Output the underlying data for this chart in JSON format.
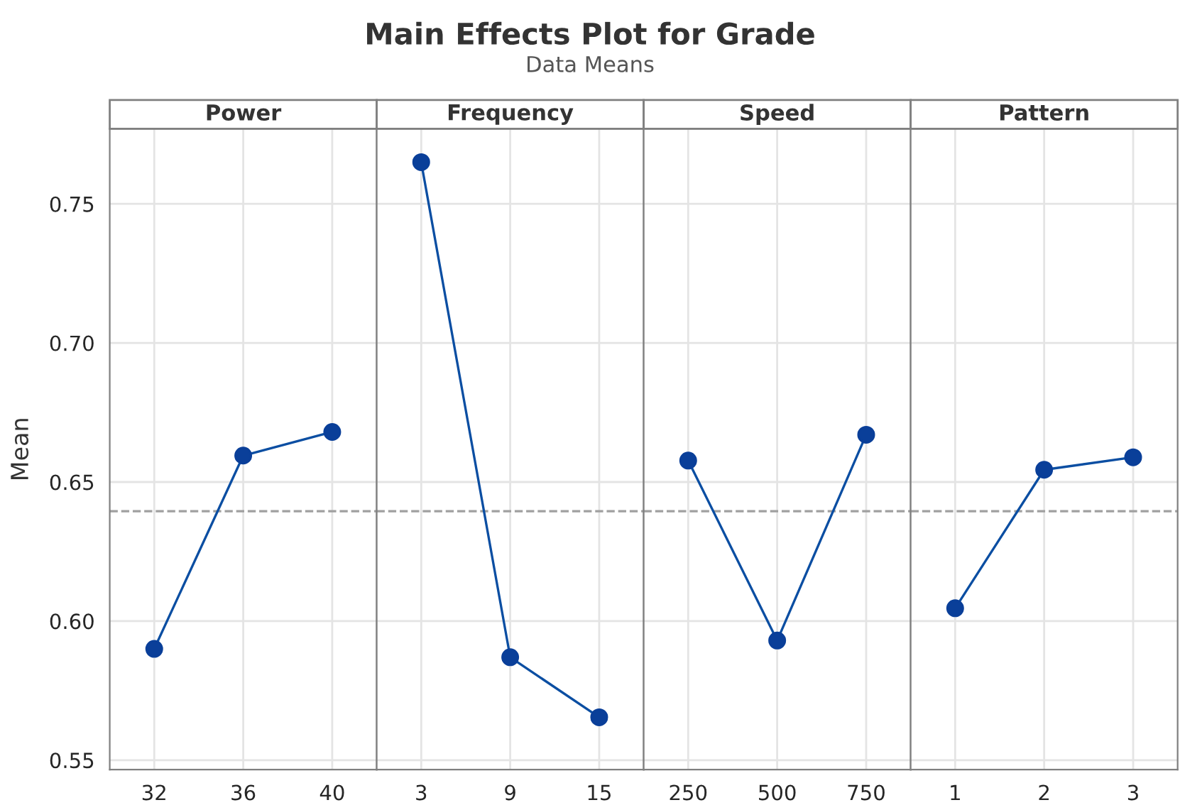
{
  "chart_data": [
    {
      "type": "other",
      "title": "Main Effects Plot for Grade",
      "subtitle": "Data Means"
    },
    {
      "type": "line",
      "title": "Power",
      "ylabel": "Mean",
      "categories": [
        "32",
        "36",
        "40"
      ],
      "series": [
        {
          "color": "#0b4ea2",
          "values": [
            0.59,
            0.6595,
            0.668
          ]
        }
      ],
      "ylim": [
        0.5466,
        0.777
      ],
      "yticks": [
        {
          "value": 0.55,
          "label": "0.55"
        },
        {
          "value": 0.6,
          "label": "0.60"
        },
        {
          "value": 0.65,
          "label": "0.65"
        },
        {
          "value": 0.7,
          "label": "0.70"
        },
        {
          "value": 0.75,
          "label": "0.75"
        }
      ],
      "ref_lines": [
        {
          "axis": "y",
          "value": 0.6395,
          "color": "#a0a0a0",
          "line_style": "dashed"
        }
      ],
      "grid": true,
      "marker": "circle",
      "line_style": "solid"
    },
    {
      "type": "line",
      "title": "Frequency",
      "categories": [
        "3",
        "9",
        "15"
      ],
      "series": [
        {
          "color": "#0b4ea2",
          "values": [
            0.765,
            0.587,
            0.5654
          ]
        }
      ],
      "ylim": [
        0.5466,
        0.777
      ],
      "tick_labels": "x",
      "ref_lines": [
        {
          "axis": "y",
          "value": 0.6395,
          "color": "#a0a0a0",
          "line_style": "dashed"
        }
      ],
      "grid": true,
      "marker": "circle",
      "line_style": "solid"
    },
    {
      "type": "line",
      "title": "Speed",
      "categories": [
        "250",
        "500",
        "750"
      ],
      "series": [
        {
          "color": "#0b4ea2",
          "values": [
            0.6577,
            0.593,
            0.667
          ]
        }
      ],
      "ylim": [
        0.5466,
        0.777
      ],
      "tick_labels": "x",
      "ref_lines": [
        {
          "axis": "y",
          "value": 0.6395,
          "color": "#a0a0a0",
          "line_style": "dashed"
        }
      ],
      "grid": true,
      "marker": "circle",
      "line_style": "solid"
    },
    {
      "type": "line",
      "title": "Pattern",
      "categories": [
        "1",
        "2",
        "3"
      ],
      "series": [
        {
          "color": "#0b4ea2",
          "values": [
            0.6046,
            0.6544,
            0.6589
          ]
        }
      ],
      "ylim": [
        0.5466,
        0.777
      ],
      "tick_labels": "x",
      "ref_lines": [
        {
          "axis": "y",
          "value": 0.6395,
          "color": "#a0a0a0",
          "line_style": "dashed"
        }
      ],
      "grid": true,
      "marker": "circle",
      "line_style": "solid"
    }
  ]
}
